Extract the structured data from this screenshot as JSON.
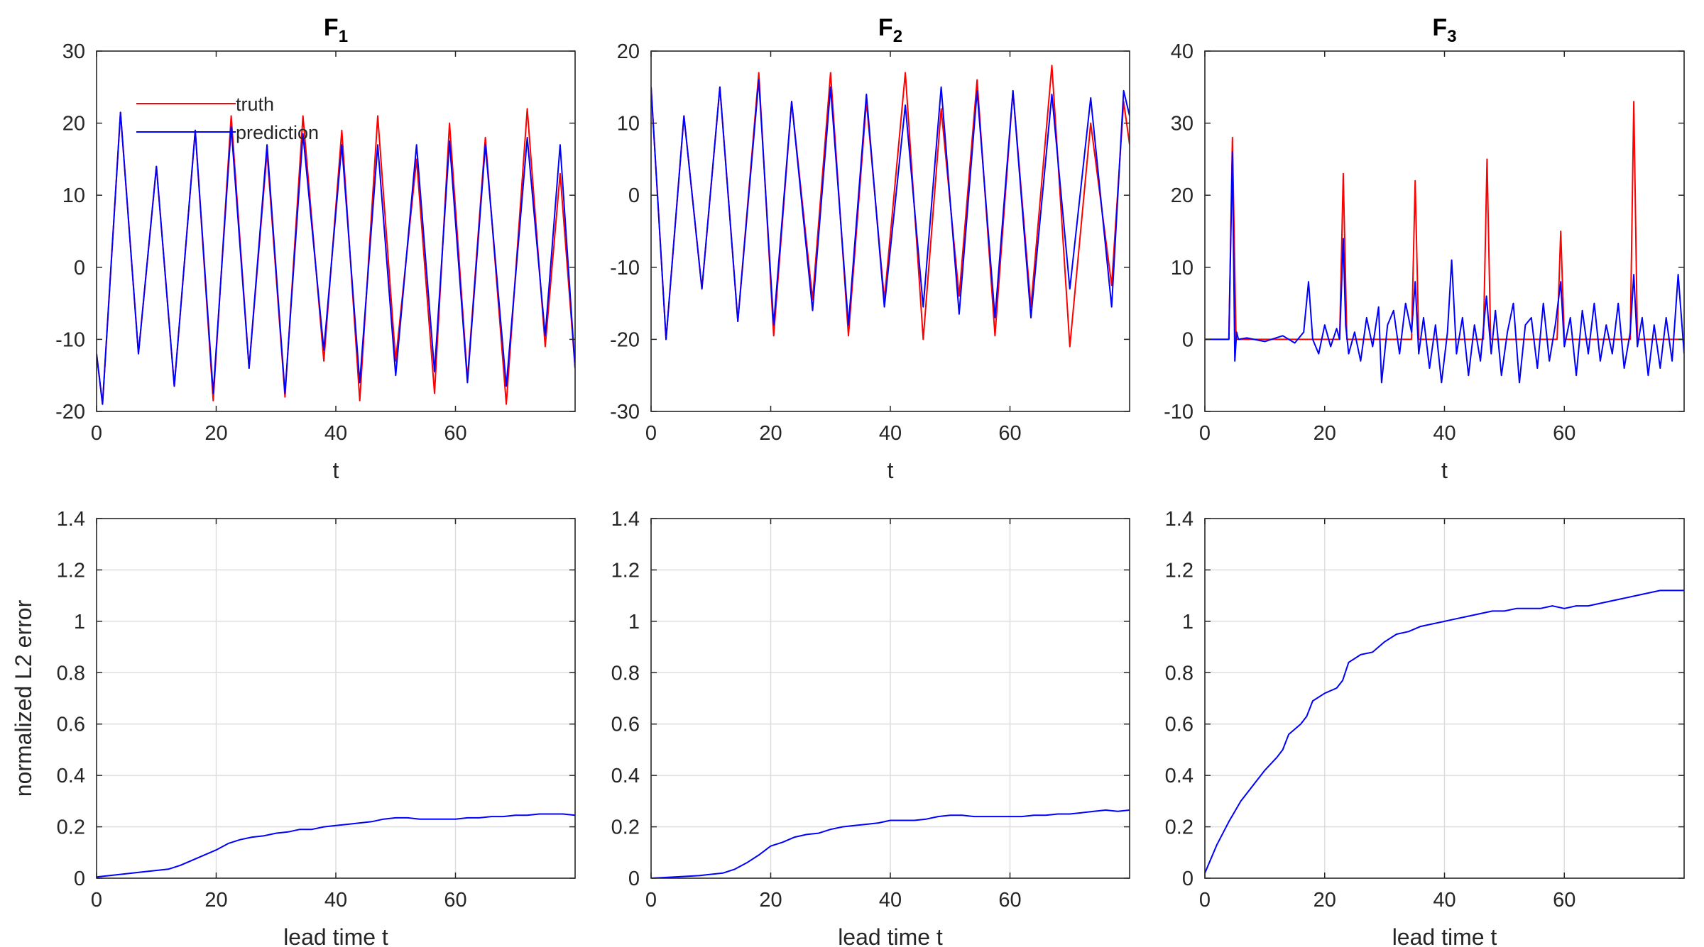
{
  "chart_data": [
    {
      "type": "line",
      "title": "F",
      "title_sub": "1",
      "xlabel": "t",
      "ylabel": "",
      "xlim": [
        0,
        80
      ],
      "ylim": [
        -20,
        30
      ],
      "xticks": [
        0,
        20,
        40,
        60
      ],
      "yticks": [
        -20,
        -10,
        0,
        10,
        20,
        30
      ],
      "ytick_labels": [
        "-20",
        "-10",
        "0",
        "10",
        "20",
        "30"
      ],
      "grid": false,
      "legend": {
        "placement": "top-left",
        "entries": [
          "truth",
          "prediction"
        ]
      },
      "series": [
        {
          "name": "truth",
          "color": "#ff0000",
          "x": [
            0,
            1,
            4,
            7,
            10,
            13,
            16.5,
            19.5,
            22.5,
            25.5,
            28.5,
            31.5,
            34.5,
            38,
            41,
            44,
            47,
            50,
            53.5,
            56.5,
            59,
            62,
            65,
            68.5,
            72,
            75,
            77.5,
            80
          ],
          "y": [
            -12,
            -19,
            21.5,
            -12,
            14,
            -16.5,
            19,
            -18.5,
            21,
            -14,
            16,
            -18,
            21,
            -13,
            19,
            -18.5,
            21,
            -13,
            15,
            -17.5,
            20,
            -15.5,
            18,
            -19,
            22,
            -11,
            13,
            -14
          ]
        },
        {
          "name": "prediction",
          "color": "#0000ff",
          "x": [
            0,
            1,
            4,
            7,
            10,
            13,
            16.5,
            19.5,
            22.5,
            25.5,
            28.5,
            31.5,
            34.5,
            38,
            41,
            44,
            47,
            50,
            53.5,
            56.5,
            59,
            62,
            65,
            68.5,
            72,
            75,
            77.5,
            80
          ],
          "y": [
            -12,
            -19,
            21.5,
            -12,
            14,
            -16.5,
            19,
            -17.5,
            19.5,
            -14,
            17,
            -17.5,
            18.5,
            -11.5,
            17,
            -16,
            17,
            -15,
            17,
            -14.5,
            17.5,
            -16,
            17,
            -16.5,
            18,
            -9.5,
            17,
            -14
          ]
        }
      ]
    },
    {
      "type": "line",
      "title": "F",
      "title_sub": "2",
      "xlabel": "t",
      "ylabel": "",
      "xlim": [
        0,
        80
      ],
      "ylim": [
        -30,
        20
      ],
      "xticks": [
        0,
        20,
        40,
        60
      ],
      "yticks": [
        -30,
        -20,
        -10,
        0,
        10,
        20
      ],
      "ytick_labels": [
        "-30",
        "-20",
        "-10",
        "0",
        "10",
        "20"
      ],
      "grid": false,
      "series": [
        {
          "name": "truth",
          "color": "#ff0000",
          "x": [
            0,
            2.5,
            5.5,
            8.5,
            11.5,
            14.5,
            18,
            20.5,
            23.5,
            27,
            30,
            33,
            36,
            39,
            42.5,
            45.5,
            48.5,
            51.5,
            54.5,
            57.5,
            60.5,
            63.5,
            67,
            70,
            73.5,
            77,
            79,
            80
          ],
          "y": [
            15,
            -20,
            11,
            -13,
            15,
            -17.5,
            17,
            -19.5,
            13,
            -14.5,
            17,
            -19.5,
            13,
            -14.5,
            17,
            -20,
            12,
            -14,
            16,
            -19.5,
            14.5,
            -15.5,
            18,
            -21,
            10,
            -12.5,
            13,
            7
          ]
        },
        {
          "name": "prediction",
          "color": "#0000ff",
          "x": [
            0,
            2.5,
            5.5,
            8.5,
            11.5,
            14.5,
            18,
            20.5,
            23.5,
            27,
            30,
            33,
            36,
            39,
            42.5,
            45.5,
            48.5,
            51.5,
            54.5,
            57.5,
            60.5,
            63.5,
            67,
            70,
            73.5,
            77,
            79,
            80
          ],
          "y": [
            15,
            -20,
            11,
            -13,
            15,
            -17.5,
            16,
            -18,
            13,
            -16,
            15,
            -18,
            14,
            -15.5,
            12.5,
            -15.5,
            15,
            -16.5,
            14.5,
            -17,
            14.5,
            -17,
            14,
            -13,
            13.5,
            -15.5,
            14.5,
            11
          ]
        }
      ]
    },
    {
      "type": "line",
      "title": "F",
      "title_sub": "3",
      "xlabel": "t",
      "ylabel": "",
      "xlim": [
        0,
        80
      ],
      "ylim": [
        -10,
        40
      ],
      "xticks": [
        0,
        20,
        40,
        60
      ],
      "yticks": [
        -10,
        0,
        10,
        20,
        30,
        40
      ],
      "ytick_labels": [
        "-10",
        "0",
        "10",
        "20",
        "30",
        "40"
      ],
      "grid": false,
      "series": [
        {
          "name": "truth",
          "color": "#ff0000",
          "x": [
            0,
            4,
            4.6,
            5.2,
            6,
            22.5,
            23.1,
            23.7,
            24.5,
            34.5,
            35.1,
            35.7,
            36.5,
            46.5,
            47.1,
            47.7,
            48.5,
            58.8,
            59.4,
            60,
            60.8,
            71,
            71.6,
            72.2,
            73,
            80
          ],
          "y": [
            0,
            0,
            28,
            0,
            0,
            0,
            23,
            0,
            0,
            0,
            22,
            0,
            0,
            0,
            25,
            0,
            0,
            0,
            15,
            0,
            0,
            0,
            33,
            0,
            0,
            0
          ]
        },
        {
          "name": "prediction",
          "color": "#0000ff",
          "x": [
            0,
            4,
            4.6,
            5.0,
            5.3,
            5.6,
            7,
            10,
            13,
            15,
            16.5,
            17.3,
            18,
            19,
            20,
            21,
            22,
            22.5,
            23.1,
            23.5,
            24,
            25,
            26,
            27,
            28,
            29,
            29.5,
            30.5,
            31.5,
            32.5,
            33.5,
            34.5,
            35.1,
            35.7,
            36.5,
            37.5,
            38.5,
            39.5,
            40.5,
            41.2,
            42,
            43,
            44,
            45,
            46,
            47,
            47.8,
            48.5,
            49.5,
            50.5,
            51.5,
            52.5,
            53.5,
            54.5,
            55.5,
            56.5,
            57.5,
            58.5,
            59.4,
            60,
            61,
            62,
            63,
            64,
            65,
            66,
            67,
            68,
            69,
            70,
            71,
            71.6,
            72.2,
            73,
            74,
            75,
            76,
            77,
            78,
            79,
            80
          ],
          "y": [
            0,
            0,
            26,
            -3,
            1,
            0,
            0.2,
            -0.3,
            0.5,
            -0.5,
            1,
            8,
            0,
            -2,
            2,
            -1,
            1.5,
            0,
            14,
            2,
            -2,
            1,
            -3,
            3,
            -1,
            4.5,
            -6,
            2,
            4,
            -2,
            5,
            1,
            8,
            -2,
            3,
            -4,
            2,
            -6,
            1,
            11,
            -2,
            3,
            -5,
            2,
            -3,
            6,
            -2,
            4,
            -5,
            1,
            5,
            -6,
            2,
            3,
            -4,
            5,
            -3,
            2,
            8,
            -1,
            3,
            -5,
            4,
            -2,
            5,
            -3,
            2,
            -2,
            5,
            -4,
            1,
            9,
            -1,
            3,
            -5,
            2,
            -4,
            3,
            -3,
            9,
            -2
          ]
        }
      ]
    },
    {
      "type": "line",
      "title": "",
      "xlabel": "lead time t",
      "ylabel": "normalized L2 error",
      "xlim": [
        0,
        80
      ],
      "ylim": [
        0,
        1.4
      ],
      "xticks": [
        0,
        20,
        40,
        60
      ],
      "yticks": [
        0,
        0.2,
        0.4,
        0.6,
        0.8,
        1.0,
        1.2,
        1.4
      ],
      "ytick_labels": [
        "0",
        "0.2",
        "0.4",
        "0.6",
        "0.8",
        "1",
        "1.2",
        "1.4"
      ],
      "grid": true,
      "series": [
        {
          "name": "error",
          "color": "#0000ff",
          "x": [
            0,
            4,
            8,
            12,
            14,
            16,
            18,
            20,
            22,
            24,
            26,
            28,
            30,
            32,
            34,
            36,
            38,
            40,
            42,
            44,
            46,
            48,
            50,
            52,
            54,
            56,
            58,
            60,
            62,
            64,
            66,
            68,
            70,
            72,
            74,
            76,
            78,
            80
          ],
          "y": [
            0.005,
            0.015,
            0.025,
            0.035,
            0.05,
            0.07,
            0.09,
            0.11,
            0.135,
            0.15,
            0.16,
            0.165,
            0.175,
            0.18,
            0.19,
            0.19,
            0.2,
            0.205,
            0.21,
            0.215,
            0.22,
            0.23,
            0.235,
            0.235,
            0.23,
            0.23,
            0.23,
            0.23,
            0.235,
            0.235,
            0.24,
            0.24,
            0.245,
            0.245,
            0.25,
            0.25,
            0.25,
            0.245
          ]
        }
      ]
    },
    {
      "type": "line",
      "title": "",
      "xlabel": "lead time t",
      "ylabel": "",
      "xlim": [
        0,
        80
      ],
      "ylim": [
        0,
        1.4
      ],
      "xticks": [
        0,
        20,
        40,
        60
      ],
      "yticks": [
        0,
        0.2,
        0.4,
        0.6,
        0.8,
        1.0,
        1.2,
        1.4
      ],
      "ytick_labels": [
        "0",
        "0.2",
        "0.4",
        "0.6",
        "0.8",
        "1",
        "1.2",
        "1.4"
      ],
      "grid": true,
      "series": [
        {
          "name": "error",
          "color": "#0000ff",
          "x": [
            0,
            4,
            8,
            12,
            14,
            16,
            18,
            20,
            22,
            24,
            26,
            28,
            30,
            32,
            34,
            36,
            38,
            40,
            42,
            44,
            46,
            48,
            50,
            52,
            54,
            56,
            58,
            60,
            62,
            64,
            66,
            68,
            70,
            72,
            74,
            76,
            78,
            80
          ],
          "y": [
            0,
            0.005,
            0.01,
            0.02,
            0.035,
            0.06,
            0.09,
            0.125,
            0.14,
            0.16,
            0.17,
            0.175,
            0.19,
            0.2,
            0.205,
            0.21,
            0.215,
            0.225,
            0.225,
            0.225,
            0.23,
            0.24,
            0.245,
            0.245,
            0.24,
            0.24,
            0.24,
            0.24,
            0.24,
            0.245,
            0.245,
            0.25,
            0.25,
            0.255,
            0.26,
            0.265,
            0.26,
            0.265
          ]
        }
      ]
    },
    {
      "type": "line",
      "title": "",
      "xlabel": "lead time t",
      "ylabel": "",
      "xlim": [
        0,
        80
      ],
      "ylim": [
        0,
        1.4
      ],
      "xticks": [
        0,
        20,
        40,
        60
      ],
      "yticks": [
        0,
        0.2,
        0.4,
        0.6,
        0.8,
        1.0,
        1.2,
        1.4
      ],
      "ytick_labels": [
        "0",
        "0.2",
        "0.4",
        "0.6",
        "0.8",
        "1",
        "1.2",
        "1.4"
      ],
      "grid": true,
      "series": [
        {
          "name": "error",
          "color": "#0000ff",
          "x": [
            0,
            2,
            4,
            6,
            8,
            10,
            12,
            13,
            14,
            16,
            17,
            18,
            20,
            22,
            23,
            24,
            26,
            28,
            30,
            32,
            34,
            36,
            38,
            40,
            42,
            44,
            46,
            48,
            50,
            52,
            54,
            56,
            58,
            60,
            62,
            64,
            66,
            68,
            70,
            72,
            74,
            76,
            78,
            80
          ],
          "y": [
            0.02,
            0.13,
            0.22,
            0.3,
            0.36,
            0.42,
            0.47,
            0.5,
            0.56,
            0.6,
            0.63,
            0.69,
            0.72,
            0.74,
            0.77,
            0.84,
            0.87,
            0.88,
            0.92,
            0.95,
            0.96,
            0.98,
            0.99,
            1.0,
            1.01,
            1.02,
            1.03,
            1.04,
            1.04,
            1.05,
            1.05,
            1.05,
            1.06,
            1.05,
            1.06,
            1.06,
            1.07,
            1.08,
            1.09,
            1.1,
            1.11,
            1.12,
            1.12,
            1.12
          ]
        }
      ]
    }
  ]
}
